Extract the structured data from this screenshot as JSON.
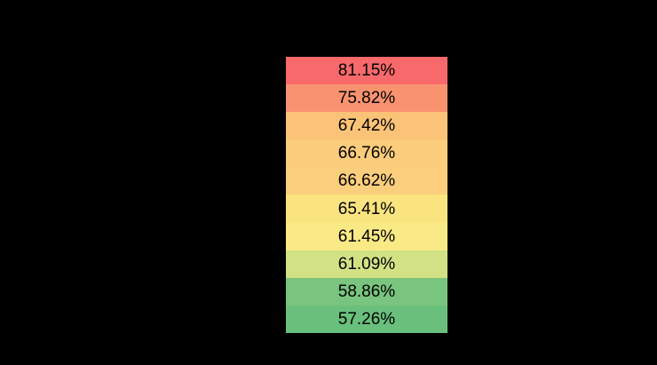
{
  "page": {
    "background_color": "#000000"
  },
  "chart_data": {
    "type": "heatmap",
    "orientation": "single-column",
    "rows": 10,
    "value_unit": "%",
    "value_range": [
      57.26,
      81.15
    ],
    "color_scale": "red-yellow-green (high=red, low=green)",
    "text_color": "#000000",
    "legend": "none",
    "grid": "off",
    "cells": [
      {
        "label": "81.15%",
        "value": 81.15,
        "color": "#F8696B"
      },
      {
        "label": "75.82%",
        "value": 75.82,
        "color": "#F9936F"
      },
      {
        "label": "67.42%",
        "value": 67.42,
        "color": "#FBC377"
      },
      {
        "label": "66.76%",
        "value": 66.76,
        "color": "#FBCC7B"
      },
      {
        "label": "66.62%",
        "value": 66.62,
        "color": "#FBCE7D"
      },
      {
        "label": "65.41%",
        "value": 65.41,
        "color": "#FAE480"
      },
      {
        "label": "61.45%",
        "value": 61.45,
        "color": "#F9EA86"
      },
      {
        "label": "61.09%",
        "value": 61.09,
        "color": "#D2E184"
      },
      {
        "label": "58.86%",
        "value": 58.86,
        "color": "#79C47E"
      },
      {
        "label": "57.26%",
        "value": 57.26,
        "color": "#69C07C"
      }
    ]
  }
}
